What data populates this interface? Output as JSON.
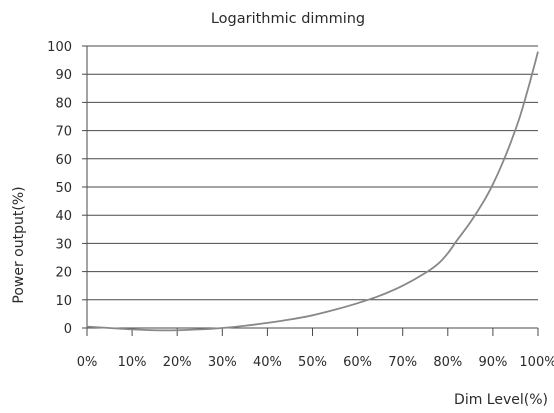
{
  "chart_data": {
    "type": "line",
    "title": "Logarithmic dimming",
    "xlabel": "Dim Level(%)",
    "ylabel": "Power output(%)",
    "x_tick_labels": [
      "0%",
      "10%",
      "20%",
      "30%",
      "40%",
      "50%",
      "60%",
      "70%",
      "80%",
      "90%",
      "100%"
    ],
    "y_tick_labels": [
      "0",
      "10",
      "20",
      "30",
      "40",
      "50",
      "60",
      "70",
      "80",
      "90",
      "100"
    ],
    "xlim": [
      0,
      100
    ],
    "ylim": [
      0,
      100
    ],
    "grid": "horizontal",
    "line_color": "#888888",
    "series": [
      {
        "x": [
          0,
          5,
          10,
          15,
          20,
          25,
          30,
          35,
          40,
          45,
          50,
          55,
          60,
          65,
          70,
          75,
          78,
          80,
          82,
          85,
          88,
          90,
          92,
          94,
          96,
          98,
          100
        ],
        "y": [
          0.5,
          0,
          -0.5,
          -0.8,
          -0.8,
          -0.5,
          0,
          0.8,
          1.8,
          3.0,
          4.5,
          6.5,
          8.8,
          11.5,
          15,
          19.5,
          23,
          26.5,
          31,
          37.5,
          45,
          51,
          58,
          66,
          75,
          86,
          98
        ]
      }
    ]
  }
}
